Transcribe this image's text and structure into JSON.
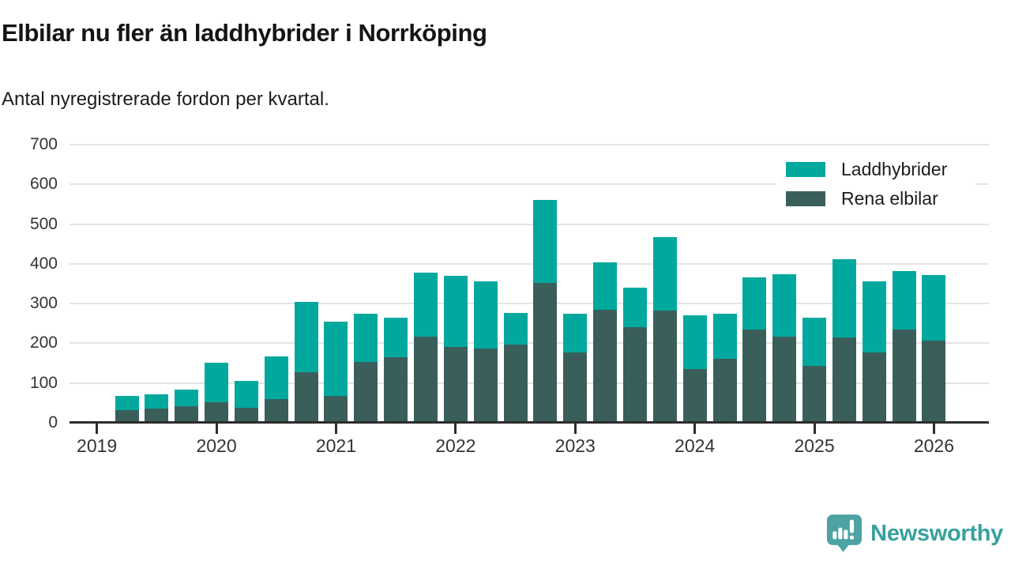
{
  "header": {
    "title": "Elbilar nu fler än laddhybrider i Norrköping",
    "subtitle": "Antal nyregistrerade fordon per kvartal."
  },
  "chart_data": {
    "type": "bar",
    "stacked": true,
    "title": "Elbilar nu fler än laddhybrider i Norrköping",
    "subtitle": "Antal nyregistrerade fordon per kvartal.",
    "xlabel": "",
    "ylabel": "",
    "ylim": [
      0,
      700
    ],
    "yticks": [
      0,
      100,
      200,
      300,
      400,
      500,
      600,
      700
    ],
    "grid": true,
    "legend_position": "top-right",
    "x_year_labels": [
      "2019",
      "2020",
      "2021",
      "2022",
      "2023",
      "2024",
      "2025",
      "2026"
    ],
    "series_order_bottom_to_top": [
      "Rena elbilar",
      "Laddhybrider"
    ],
    "colors": {
      "laddhybrider": "#00a89e",
      "rena_elbilar": "#3a5f5b"
    },
    "quarters": [
      {
        "label": "2019 Q1",
        "rena_elbilar": 0,
        "laddhybrider": 0
      },
      {
        "label": "2019 Q2",
        "rena_elbilar": 32,
        "laddhybrider": 36
      },
      {
        "label": "2019 Q3",
        "rena_elbilar": 36,
        "laddhybrider": 36
      },
      {
        "label": "2019 Q4",
        "rena_elbilar": 42,
        "laddhybrider": 42
      },
      {
        "label": "2020 Q1",
        "rena_elbilar": 52,
        "laddhybrider": 99
      },
      {
        "label": "2020 Q2",
        "rena_elbilar": 38,
        "laddhybrider": 67
      },
      {
        "label": "2020 Q3",
        "rena_elbilar": 60,
        "laddhybrider": 107
      },
      {
        "label": "2020 Q4",
        "rena_elbilar": 127,
        "laddhybrider": 177
      },
      {
        "label": "2021 Q1",
        "rena_elbilar": 68,
        "laddhybrider": 186
      },
      {
        "label": "2021 Q2",
        "rena_elbilar": 153,
        "laddhybrider": 121
      },
      {
        "label": "2021 Q3",
        "rena_elbilar": 165,
        "laddhybrider": 99
      },
      {
        "label": "2021 Q4",
        "rena_elbilar": 217,
        "laddhybrider": 161
      },
      {
        "label": "2022 Q1",
        "rena_elbilar": 191,
        "laddhybrider": 179
      },
      {
        "label": "2022 Q2",
        "rena_elbilar": 187,
        "laddhybrider": 169
      },
      {
        "label": "2022 Q3",
        "rena_elbilar": 197,
        "laddhybrider": 79
      },
      {
        "label": "2022 Q4",
        "rena_elbilar": 352,
        "laddhybrider": 209
      },
      {
        "label": "2023 Q1",
        "rena_elbilar": 177,
        "laddhybrider": 97
      },
      {
        "label": "2023 Q2",
        "rena_elbilar": 284,
        "laddhybrider": 120
      },
      {
        "label": "2023 Q3",
        "rena_elbilar": 241,
        "laddhybrider": 99
      },
      {
        "label": "2023 Q4",
        "rena_elbilar": 282,
        "laddhybrider": 185
      },
      {
        "label": "2024 Q1",
        "rena_elbilar": 135,
        "laddhybrider": 135
      },
      {
        "label": "2024 Q2",
        "rena_elbilar": 161,
        "laddhybrider": 113
      },
      {
        "label": "2024 Q3",
        "rena_elbilar": 235,
        "laddhybrider": 131
      },
      {
        "label": "2024 Q4",
        "rena_elbilar": 217,
        "laddhybrider": 157
      },
      {
        "label": "2025 Q1",
        "rena_elbilar": 143,
        "laddhybrider": 121
      },
      {
        "label": "2025 Q2",
        "rena_elbilar": 215,
        "laddhybrider": 197
      },
      {
        "label": "2025 Q3",
        "rena_elbilar": 177,
        "laddhybrider": 179
      },
      {
        "label": "2025 Q4",
        "rena_elbilar": 235,
        "laddhybrider": 147
      },
      {
        "label": "2026 Q1",
        "rena_elbilar": 207,
        "laddhybrider": 165
      }
    ]
  },
  "legend": {
    "items": [
      {
        "label": "Laddhybrider",
        "color": "#00a89e"
      },
      {
        "label": "Rena elbilar",
        "color": "#3a5f5b"
      }
    ]
  },
  "footer": {
    "brand": "Newsworthy",
    "brand_text_color": "#38a09d",
    "brand_icon_color": "#4ca3a1"
  }
}
